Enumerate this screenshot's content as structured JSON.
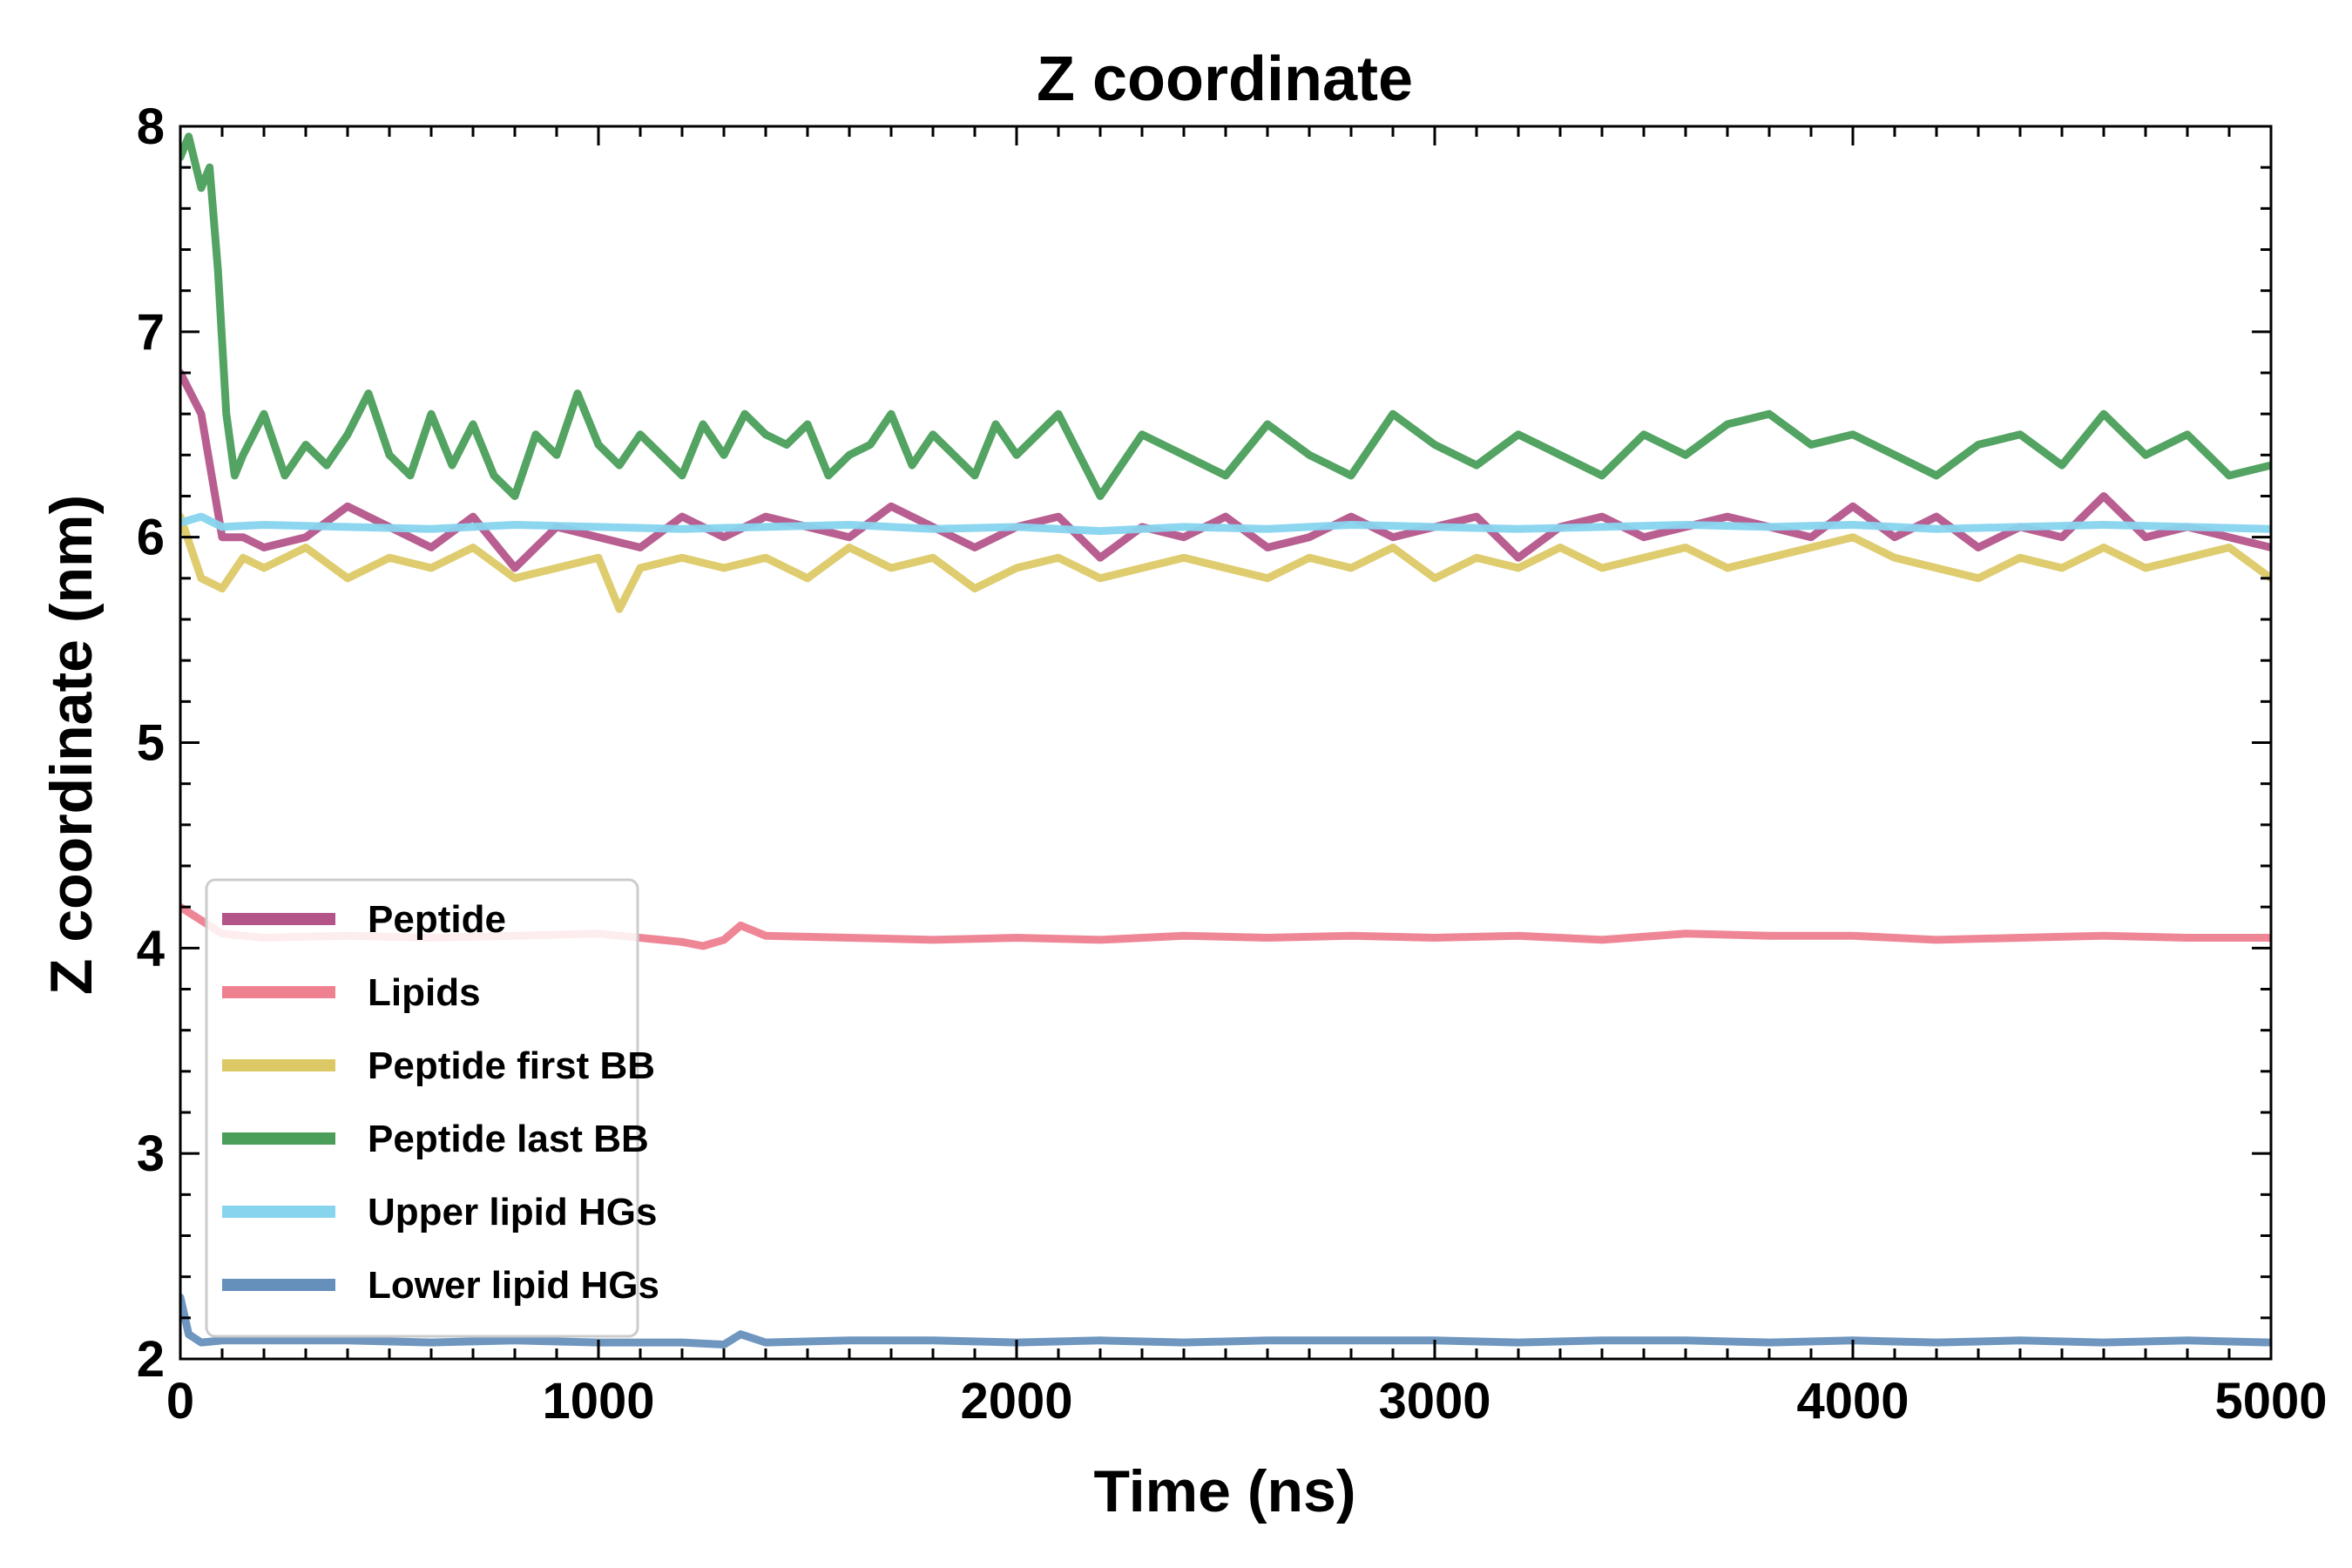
{
  "chart_data": {
    "type": "line",
    "title": "Z coordinate",
    "xlabel": "Time (ns)",
    "ylabel": "Z coordinate (nm)",
    "xlim": [
      0,
      5000
    ],
    "ylim": [
      2,
      8
    ],
    "xticks": [
      "0",
      "1000",
      "2000",
      "3000",
      "4000",
      "5000"
    ],
    "yticks": [
      "2",
      "3",
      "4",
      "5",
      "6",
      "7",
      "8"
    ],
    "grid": false,
    "legend_position": "lower-left",
    "series": [
      {
        "name": "Peptide",
        "color": "#b4558a",
        "x": [
          0,
          50,
          100,
          150,
          200,
          300,
          400,
          500,
          600,
          700,
          800,
          900,
          1000,
          1100,
          1200,
          1300,
          1400,
          1500,
          1600,
          1700,
          1800,
          1900,
          2000,
          2100,
          2200,
          2300,
          2400,
          2500,
          2600,
          2700,
          2800,
          2900,
          3000,
          3100,
          3200,
          3300,
          3400,
          3500,
          3600,
          3700,
          3800,
          3900,
          4000,
          4100,
          4200,
          4300,
          4400,
          4500,
          4600,
          4700,
          4800,
          4900,
          5000
        ],
        "y": [
          6.8,
          6.6,
          6.0,
          6.0,
          5.95,
          6.0,
          6.15,
          6.05,
          5.95,
          6.1,
          5.85,
          6.05,
          6.0,
          5.95,
          6.1,
          6.0,
          6.1,
          6.05,
          6.0,
          6.15,
          6.05,
          5.95,
          6.05,
          6.1,
          5.9,
          6.05,
          6.0,
          6.1,
          5.95,
          6.0,
          6.1,
          6.0,
          6.05,
          6.1,
          5.9,
          6.05,
          6.1,
          6.0,
          6.05,
          6.1,
          6.05,
          6.0,
          6.15,
          6.0,
          6.1,
          5.95,
          6.05,
          6.0,
          6.2,
          6.0,
          6.05,
          6.0,
          5.95
        ]
      },
      {
        "name": "Lipids",
        "color": "#ee8090",
        "x": [
          0,
          100,
          200,
          400,
          600,
          800,
          1000,
          1200,
          1250,
          1300,
          1340,
          1400,
          1600,
          1800,
          2000,
          2200,
          2400,
          2600,
          2800,
          3000,
          3200,
          3400,
          3600,
          3800,
          4000,
          4200,
          4400,
          4600,
          4800,
          5000
        ],
        "y": [
          4.2,
          4.07,
          4.05,
          4.06,
          4.05,
          4.06,
          4.07,
          4.03,
          4.01,
          4.04,
          4.11,
          4.06,
          4.05,
          4.04,
          4.05,
          4.04,
          4.06,
          4.05,
          4.06,
          4.05,
          4.06,
          4.04,
          4.07,
          4.06,
          4.06,
          4.04,
          4.05,
          4.06,
          4.05,
          4.05
        ]
      },
      {
        "name": "Peptide first BB",
        "color": "#dcc966",
        "x": [
          0,
          50,
          100,
          150,
          200,
          300,
          400,
          500,
          600,
          700,
          800,
          900,
          1000,
          1050,
          1100,
          1200,
          1300,
          1400,
          1500,
          1600,
          1700,
          1800,
          1900,
          2000,
          2100,
          2200,
          2300,
          2400,
          2500,
          2600,
          2700,
          2800,
          2900,
          3000,
          3100,
          3200,
          3300,
          3400,
          3500,
          3600,
          3700,
          3800,
          3900,
          4000,
          4100,
          4200,
          4300,
          4400,
          4500,
          4600,
          4700,
          4800,
          4900,
          5000
        ],
        "y": [
          6.1,
          5.8,
          5.75,
          5.9,
          5.85,
          5.95,
          5.8,
          5.9,
          5.85,
          5.95,
          5.8,
          5.85,
          5.9,
          5.65,
          5.85,
          5.9,
          5.85,
          5.9,
          5.8,
          5.95,
          5.85,
          5.9,
          5.75,
          5.85,
          5.9,
          5.8,
          5.85,
          5.9,
          5.85,
          5.8,
          5.9,
          5.85,
          5.95,
          5.8,
          5.9,
          5.85,
          5.95,
          5.85,
          5.9,
          5.95,
          5.85,
          5.9,
          5.95,
          6.0,
          5.9,
          5.85,
          5.8,
          5.9,
          5.85,
          5.95,
          5.85,
          5.9,
          5.95,
          5.8
        ]
      },
      {
        "name": "Peptide last BB",
        "color": "#4a9e5a",
        "x": [
          0,
          20,
          50,
          70,
          90,
          110,
          130,
          150,
          200,
          250,
          300,
          350,
          400,
          450,
          500,
          550,
          600,
          650,
          700,
          750,
          800,
          850,
          900,
          950,
          1000,
          1050,
          1100,
          1150,
          1200,
          1250,
          1300,
          1350,
          1400,
          1450,
          1500,
          1550,
          1600,
          1650,
          1700,
          1750,
          1800,
          1850,
          1900,
          1950,
          2000,
          2100,
          2200,
          2300,
          2400,
          2500,
          2600,
          2700,
          2800,
          2900,
          3000,
          3100,
          3200,
          3300,
          3400,
          3500,
          3600,
          3700,
          3800,
          3900,
          4000,
          4100,
          4200,
          4300,
          4400,
          4500,
          4600,
          4700,
          4800,
          4900,
          5000
        ],
        "y": [
          7.85,
          7.95,
          7.7,
          7.8,
          7.3,
          6.6,
          6.3,
          6.4,
          6.6,
          6.3,
          6.45,
          6.35,
          6.5,
          6.7,
          6.4,
          6.3,
          6.6,
          6.35,
          6.55,
          6.3,
          6.2,
          6.5,
          6.4,
          6.7,
          6.45,
          6.35,
          6.5,
          6.4,
          6.3,
          6.55,
          6.4,
          6.6,
          6.5,
          6.45,
          6.55,
          6.3,
          6.4,
          6.45,
          6.6,
          6.35,
          6.5,
          6.4,
          6.3,
          6.55,
          6.4,
          6.6,
          6.2,
          6.5,
          6.4,
          6.3,
          6.55,
          6.4,
          6.3,
          6.6,
          6.45,
          6.35,
          6.5,
          6.4,
          6.3,
          6.5,
          6.4,
          6.55,
          6.6,
          6.45,
          6.5,
          6.4,
          6.3,
          6.45,
          6.5,
          6.35,
          6.6,
          6.4,
          6.5,
          6.3,
          6.35
        ]
      },
      {
        "name": "Upper lipid HGs",
        "color": "#87d4ee",
        "x": [
          0,
          50,
          100,
          200,
          400,
          600,
          800,
          1000,
          1200,
          1400,
          1600,
          1800,
          2000,
          2200,
          2400,
          2600,
          2800,
          3000,
          3200,
          3400,
          3600,
          3800,
          4000,
          4200,
          4400,
          4600,
          4800,
          5000
        ],
        "y": [
          6.07,
          6.1,
          6.05,
          6.06,
          6.05,
          6.04,
          6.06,
          6.05,
          6.04,
          6.05,
          6.06,
          6.04,
          6.05,
          6.03,
          6.05,
          6.04,
          6.06,
          6.05,
          6.04,
          6.05,
          6.06,
          6.05,
          6.06,
          6.04,
          6.05,
          6.06,
          6.05,
          6.04
        ]
      },
      {
        "name": "Lower lipid HGs",
        "color": "#6690bc",
        "x": [
          0,
          20,
          50,
          100,
          200,
          400,
          600,
          800,
          1000,
          1200,
          1300,
          1340,
          1400,
          1600,
          1800,
          2000,
          2200,
          2400,
          2600,
          2800,
          3000,
          3200,
          3400,
          3600,
          3800,
          4000,
          4200,
          4400,
          4600,
          4800,
          5000
        ],
        "y": [
          2.3,
          2.12,
          2.08,
          2.09,
          2.09,
          2.09,
          2.08,
          2.09,
          2.08,
          2.08,
          2.07,
          2.12,
          2.08,
          2.09,
          2.09,
          2.08,
          2.09,
          2.08,
          2.09,
          2.09,
          2.09,
          2.08,
          2.09,
          2.09,
          2.08,
          2.09,
          2.08,
          2.09,
          2.08,
          2.09,
          2.08
        ]
      }
    ]
  }
}
